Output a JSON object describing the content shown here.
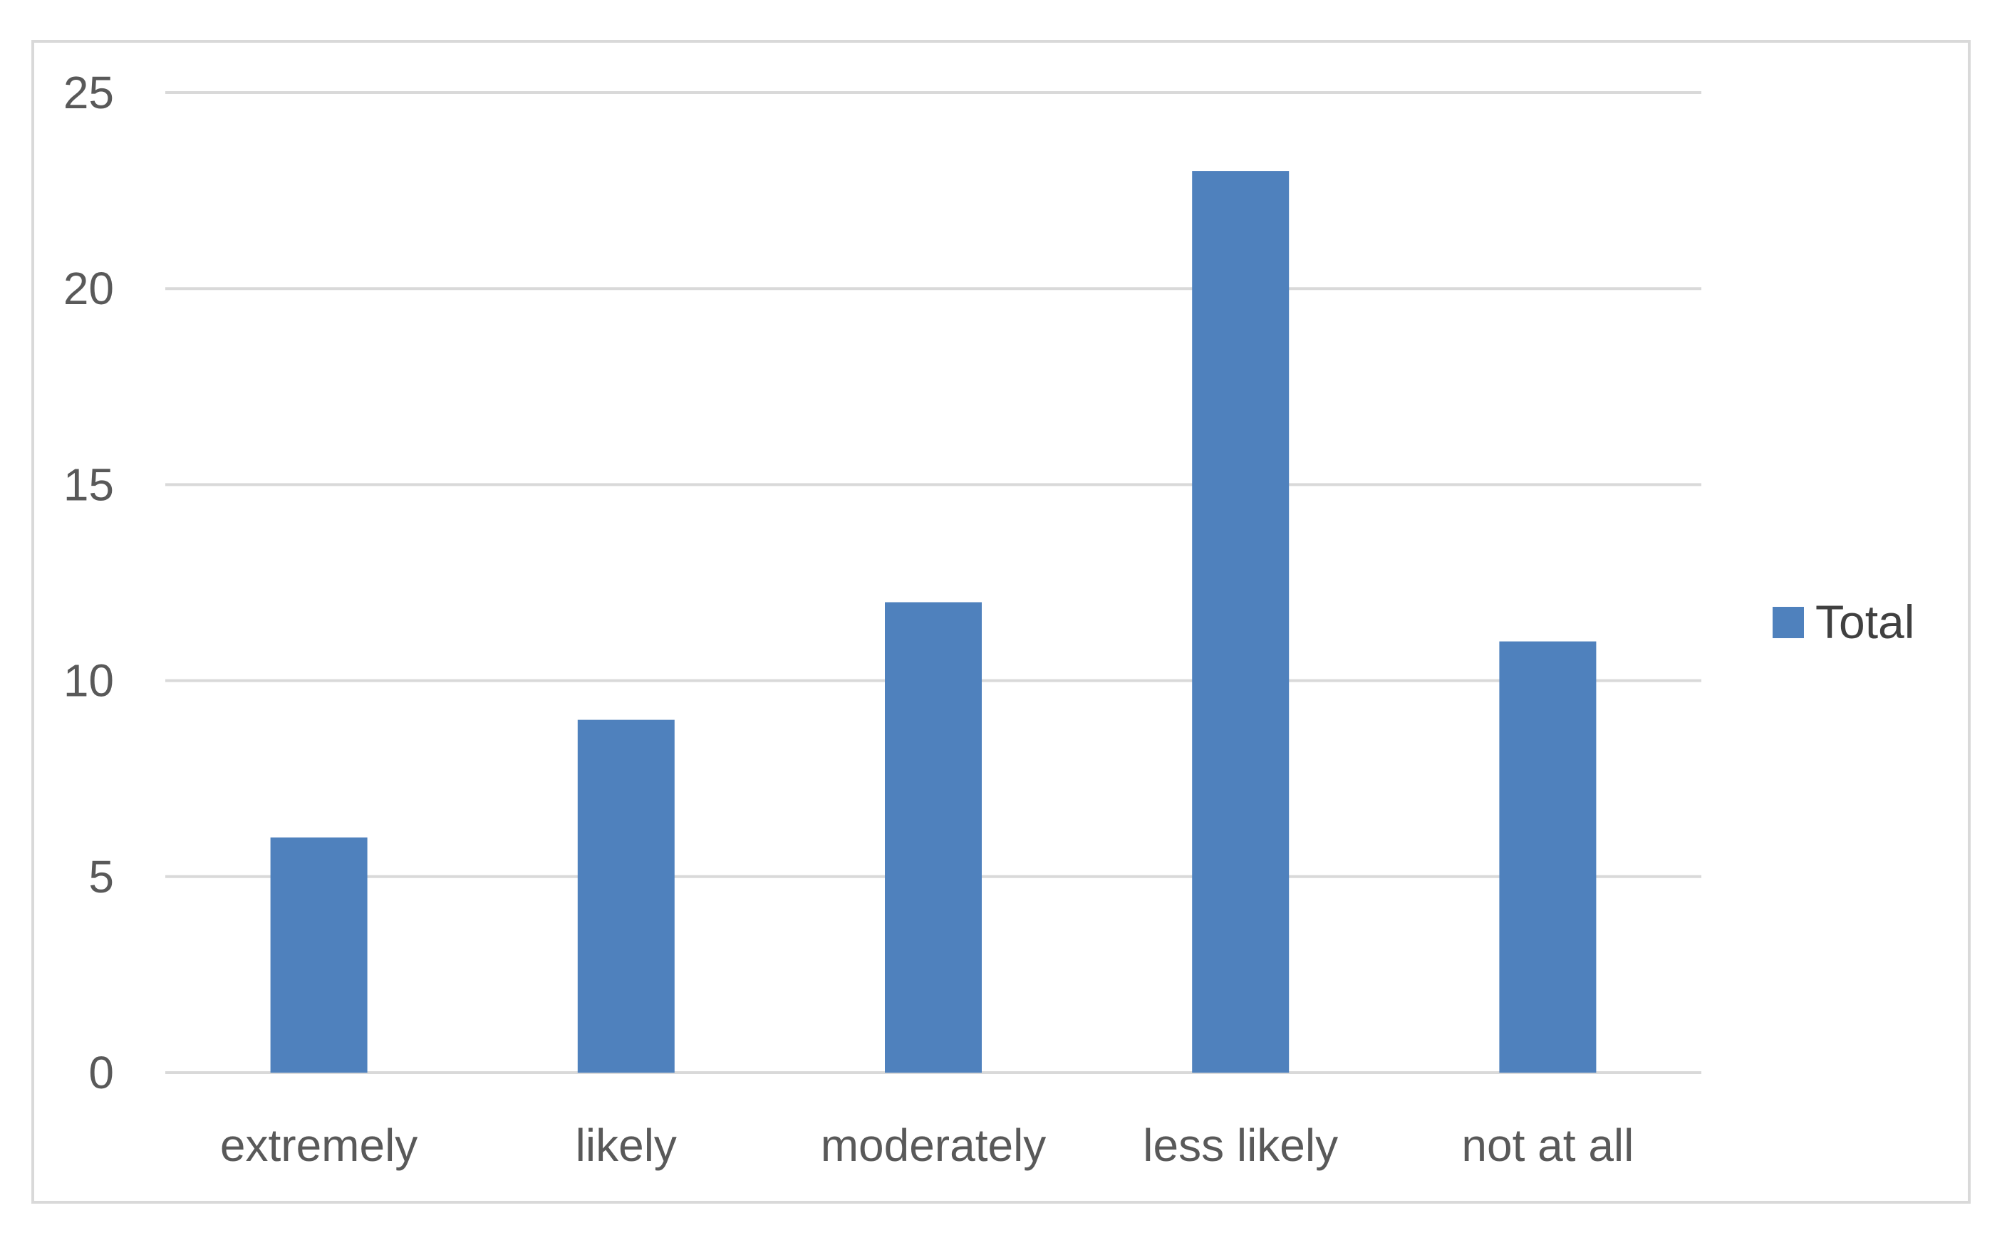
{
  "chart_data": {
    "type": "bar",
    "categories": [
      "extremely",
      "likely",
      "moderately",
      "less likely",
      "not at all"
    ],
    "series": [
      {
        "name": "Total",
        "values": [
          6,
          9,
          12,
          23,
          11
        ],
        "color": "#4f81bd"
      }
    ],
    "title": "",
    "xlabel": "",
    "ylabel": "",
    "ylim": [
      0,
      25
    ],
    "yticks": [
      0,
      5,
      10,
      15,
      20,
      25
    ],
    "ytick_labels": [
      "0",
      "5",
      "10",
      "15",
      "20",
      "25"
    ],
    "grid": true,
    "gridline_color": "#d9d9d9",
    "legend_position": "right"
  }
}
